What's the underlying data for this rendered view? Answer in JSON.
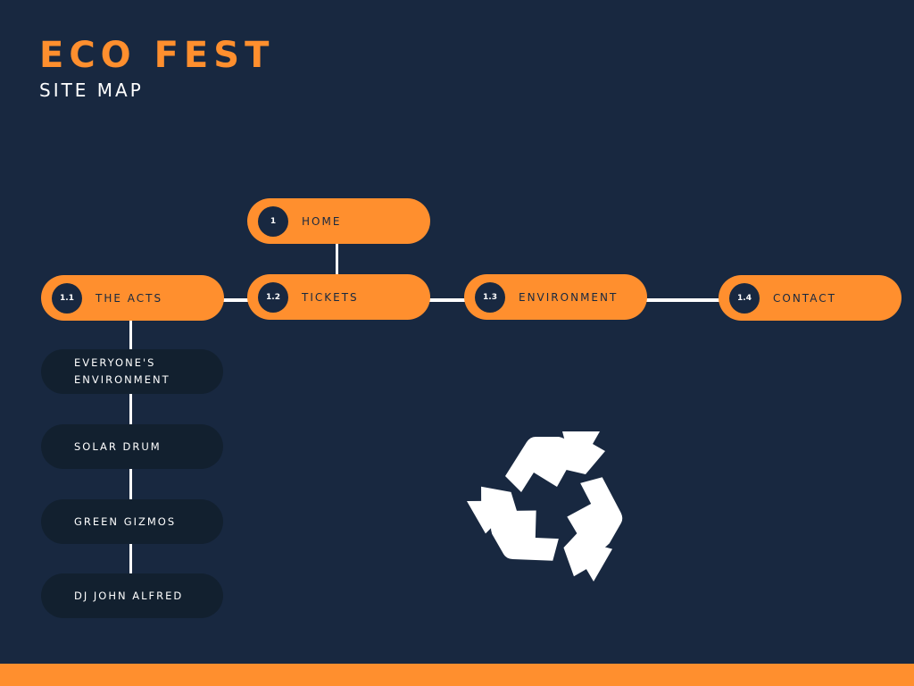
{
  "header": {
    "title": "ECO FEST",
    "subtitle": "SITE MAP"
  },
  "nodes": {
    "home": {
      "number": "1",
      "label": "HOME"
    },
    "acts": {
      "number": "1.1",
      "label": "THE ACTS"
    },
    "tickets": {
      "number": "1.2",
      "label": "TICKETS"
    },
    "environment": {
      "number": "1.3",
      "label": "ENVIRONMENT"
    },
    "contact": {
      "number": "1.4",
      "label": "CONTACT"
    }
  },
  "acts_children": [
    "EVERYONE'S\nENVIRONMENT",
    "SOLAR DRUM",
    "GREEN GIZMOS",
    "DJ JOHN ALFRED"
  ],
  "icon": "recycle-icon",
  "colors": {
    "background": "#182840",
    "accent": "#ff8f2e",
    "sub_node": "#12202f",
    "text_light": "#ffffff"
  }
}
